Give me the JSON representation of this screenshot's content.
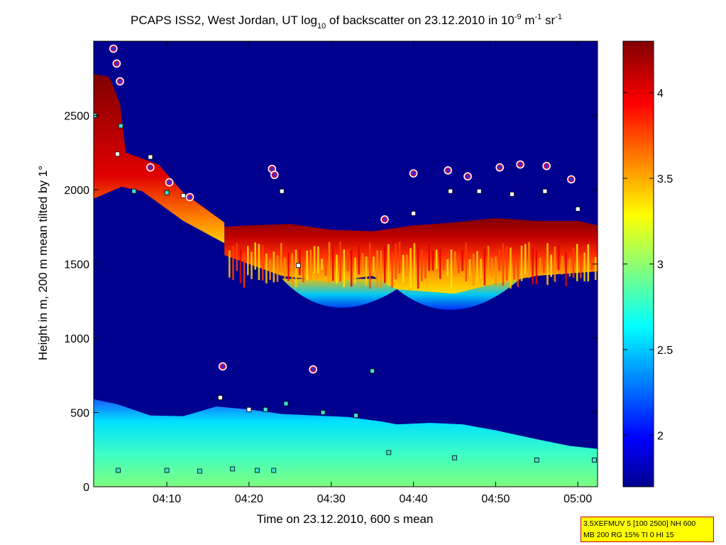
{
  "chart_data": {
    "type": "heatmap",
    "title": {
      "prefix": "PCAPS ISS2, West Jordan, UT log",
      "log_sub": "10",
      "mid": " of backscatter on 23.12.2010 in 10",
      "exp1": "-9",
      "unit1": " m",
      "exp2": "-1",
      "unit2": " sr",
      "exp3": "-1"
    },
    "xlabel": "Time on 23.12.2010, 600 s mean",
    "ylabel": "Height in m, 200 m mean tilted by 1°",
    "x_ticks": [
      "04:10",
      "04:20",
      "04:30",
      "04:40",
      "04:50",
      "05:00"
    ],
    "x_tick_minutes": [
      10,
      20,
      30,
      40,
      50,
      60
    ],
    "xlim_minutes": [
      1.1,
      62.4
    ],
    "y_ticks": [
      "0",
      "500",
      "1000",
      "1500",
      "2000",
      "2500"
    ],
    "y_tick_values": [
      0,
      500,
      1000,
      1500,
      2000,
      2500
    ],
    "ylim": [
      0,
      3000
    ],
    "colorbar": {
      "ticks": [
        "2",
        "2.5",
        "3",
        "3.5",
        "4"
      ],
      "tick_values": [
        2,
        2.5,
        3,
        3.5,
        4
      ],
      "range": [
        1.7,
        4.3
      ]
    },
    "layers": {
      "surface_top_m": [
        [
          1.1,
          590
        ],
        [
          4,
          555
        ],
        [
          8,
          480
        ],
        [
          12,
          475
        ],
        [
          16,
          540
        ],
        [
          20,
          520
        ],
        [
          24,
          490
        ],
        [
          28,
          480
        ],
        [
          32,
          470
        ],
        [
          36,
          440
        ],
        [
          38,
          420
        ],
        [
          42,
          430
        ],
        [
          46,
          420
        ],
        [
          50,
          380
        ],
        [
          55,
          320
        ],
        [
          59,
          275
        ],
        [
          62.4,
          255
        ]
      ],
      "elevated_layer_top_m": [
        [
          17,
          1750
        ],
        [
          20,
          1760
        ],
        [
          25,
          1770
        ],
        [
          30,
          1730
        ],
        [
          35,
          1720
        ],
        [
          40,
          1760
        ],
        [
          45,
          1780
        ],
        [
          50,
          1810
        ],
        [
          55,
          1790
        ],
        [
          60,
          1790
        ],
        [
          62.4,
          1760
        ]
      ],
      "elevated_layer_bottom_m": [
        [
          17,
          1560
        ],
        [
          24,
          1420
        ],
        [
          30,
          1380
        ],
        [
          35,
          1420
        ],
        [
          38,
          1330
        ],
        [
          45,
          1300
        ],
        [
          50,
          1370
        ],
        [
          55,
          1420
        ],
        [
          62.4,
          1450
        ]
      ]
    },
    "markers": {
      "cloud_base_m": [
        [
          3.5,
          2950
        ],
        [
          3.9,
          2850
        ],
        [
          4.3,
          2730
        ],
        [
          8.0,
          2150
        ],
        [
          10.3,
          2050
        ],
        [
          12.8,
          1950
        ],
        [
          16.8,
          810
        ],
        [
          22.8,
          2140
        ],
        [
          23.1,
          2100
        ],
        [
          27.8,
          790
        ],
        [
          36.5,
          1800
        ],
        [
          40.0,
          2110
        ],
        [
          44.2,
          2130
        ],
        [
          46.6,
          2090
        ],
        [
          50.5,
          2150
        ],
        [
          53.0,
          2170
        ],
        [
          56.2,
          2160
        ],
        [
          59.2,
          2070
        ]
      ],
      "layer_top_m": [
        [
          4,
          2240
        ],
        [
          8,
          2220
        ],
        [
          12,
          1960
        ],
        [
          16.5,
          600
        ],
        [
          20,
          520
        ],
        [
          24,
          1990
        ],
        [
          26,
          1490
        ],
        [
          40,
          1840
        ],
        [
          44.5,
          1990
        ],
        [
          48,
          1990
        ],
        [
          52,
          1970
        ],
        [
          56,
          1990
        ],
        [
          60,
          1870
        ]
      ],
      "residual_layer_m": [
        [
          1.2,
          2500
        ],
        [
          4.4,
          2430
        ],
        [
          6,
          1990
        ],
        [
          10,
          1980
        ],
        [
          22,
          520
        ],
        [
          24.5,
          560
        ],
        [
          29,
          500
        ],
        [
          33,
          480
        ],
        [
          35,
          780
        ],
        [
          37,
          230
        ],
        [
          45,
          195
        ],
        [
          55,
          180
        ],
        [
          62,
          180
        ],
        [
          4.1,
          110
        ],
        [
          10,
          110
        ],
        [
          14,
          105
        ],
        [
          18,
          120
        ],
        [
          21,
          110
        ],
        [
          23,
          110
        ]
      ]
    }
  },
  "info_box": {
    "line1": "3.5XEFMUV 5 [100 2500] NH 600",
    "line2": "MB 200 RG 15% TI 0 HI 15"
  }
}
